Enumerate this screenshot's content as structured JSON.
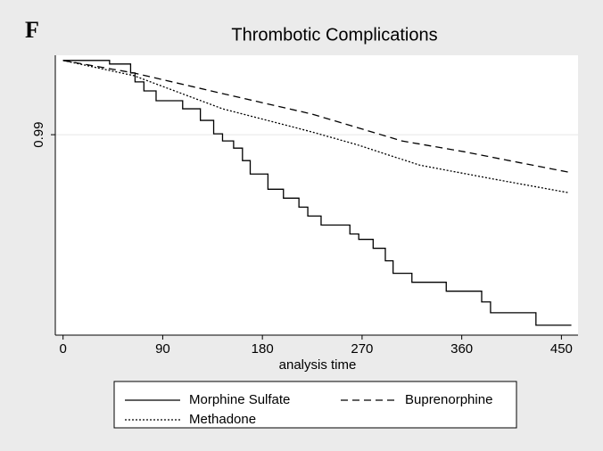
{
  "panel_label": "F",
  "chart_data": {
    "type": "line",
    "title": "Thrombotic Complications",
    "x_label": "analysis time",
    "xlim": [
      -7,
      465
    ],
    "ylim": [
      0.963,
      1.0007
    ],
    "xticks": [
      0,
      90,
      180,
      270,
      360,
      450
    ],
    "yticks": [
      0.99
    ],
    "grid": true,
    "legend": "bottom",
    "series": [
      {
        "name": "Morphine Sulfate",
        "color": "#000000",
        "style": "solid",
        "step": true,
        "x": [
          0,
          42,
          61,
          65,
          73,
          84,
          108,
          124,
          136,
          144,
          154,
          162,
          169,
          185,
          199,
          213,
          221,
          233,
          259,
          267,
          280,
          291,
          298,
          315,
          346,
          378,
          386,
          427,
          459
        ],
        "values": [
          1.0,
          0.99952,
          0.99831,
          0.99711,
          0.9959,
          0.99458,
          0.99349,
          0.99193,
          0.99012,
          0.98916,
          0.98819,
          0.98651,
          0.9847,
          0.98265,
          0.98145,
          0.98024,
          0.97904,
          0.97783,
          0.97663,
          0.9759,
          0.9747,
          0.97301,
          0.97133,
          0.97012,
          0.96892,
          0.96747,
          0.96602,
          0.96434,
          0.96434
        ]
      },
      {
        "name": "Buprenorphine",
        "color": "#000000",
        "style": "dashed",
        "step": false,
        "x": [
          0,
          64,
          144,
          225,
          306,
          362,
          411,
          457
        ],
        "values": [
          1.0,
          0.99831,
          0.99554,
          0.99277,
          0.98916,
          0.98771,
          0.98627,
          0.98494
        ]
      },
      {
        "name": "Methadone",
        "color": "#000000",
        "style": "dotted",
        "step": false,
        "x": [
          0,
          64,
          144,
          225,
          265,
          322,
          386,
          457
        ],
        "values": [
          1.0,
          0.99795,
          0.99349,
          0.99036,
          0.98867,
          0.9859,
          0.9841,
          0.98217
        ]
      }
    ]
  }
}
